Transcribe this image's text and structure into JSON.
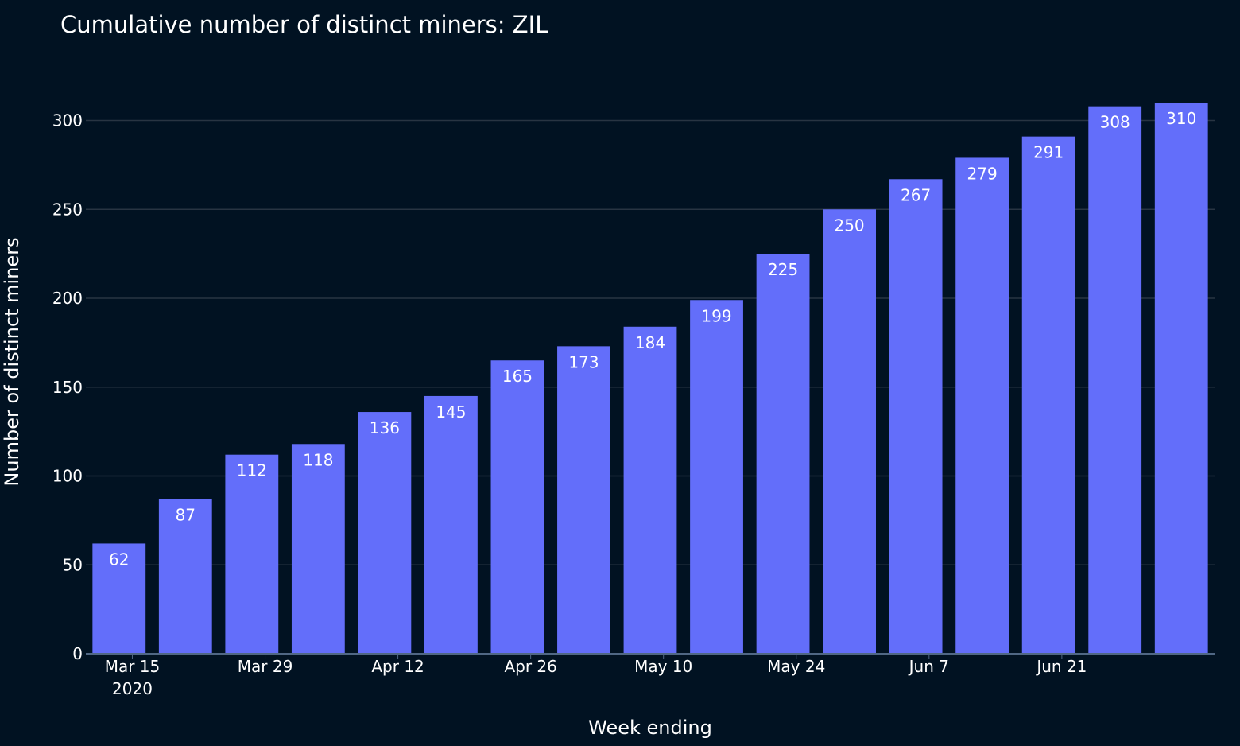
{
  "chart_data": {
    "type": "bar",
    "title": "Cumulative number of distinct miners: ZIL",
    "xlabel": "Week ending",
    "ylabel": "Number of distinct miners",
    "x": [
      "2020-03-15",
      "2020-03-22",
      "2020-03-29",
      "2020-04-05",
      "2020-04-12",
      "2020-04-19",
      "2020-04-26",
      "2020-05-03",
      "2020-05-10",
      "2020-05-17",
      "2020-05-24",
      "2020-05-31",
      "2020-06-07",
      "2020-06-14",
      "2020-06-21",
      "2020-06-28",
      "2020-07-05"
    ],
    "values": [
      62,
      87,
      112,
      118,
      136,
      145,
      165,
      173,
      184,
      199,
      225,
      250,
      267,
      279,
      291,
      308,
      310
    ],
    "ylim": [
      0,
      315
    ],
    "yticks": [
      0,
      50,
      100,
      150,
      200,
      250,
      300
    ],
    "xticks": [
      {
        "label": "Mar 15",
        "sublabel": "2020",
        "index": 0.7
      },
      {
        "label": "Mar 29",
        "index": 2.7
      },
      {
        "label": "Apr 12",
        "index": 4.7
      },
      {
        "label": "Apr 26",
        "index": 6.7
      },
      {
        "label": "May 10",
        "index": 8.7
      },
      {
        "label": "May 24",
        "index": 10.7
      },
      {
        "label": "Jun 7",
        "index": 12.7
      },
      {
        "label": "Jun 21",
        "index": 14.7
      }
    ],
    "grid": true,
    "colors": {
      "background": "#011222",
      "bar": "#636efa",
      "grid": "#283442",
      "axis": "#506784",
      "text": "#ffffff"
    }
  }
}
